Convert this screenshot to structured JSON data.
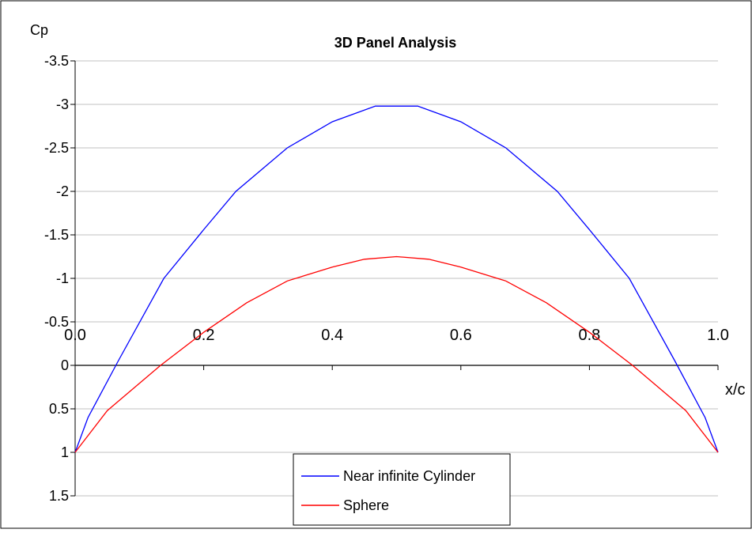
{
  "chart_data": {
    "type": "line",
    "title": "3D Panel Analysis",
    "xlabel": "x/c",
    "ylabel": "Cp",
    "xlim": [
      0,
      1
    ],
    "ylim": [
      1.5,
      -3.5
    ],
    "y_inverted": true,
    "x_ticks": [
      "0.0",
      "0.2",
      "0.4",
      "0.6",
      "0.8",
      "1.0"
    ],
    "x_tick_values": [
      0,
      0.2,
      0.4,
      0.6,
      0.8,
      1.0
    ],
    "y_ticks": [
      "-3.5",
      "-3",
      "-2.5",
      "-2",
      "-1.5",
      "-1",
      "-0.5",
      "0",
      "0.5",
      "1",
      "1.5"
    ],
    "y_tick_values": [
      -3.5,
      -3,
      -2.5,
      -2,
      -1.5,
      -1,
      -0.5,
      0,
      0.5,
      1,
      1.5
    ],
    "grid": "horizontal",
    "legend_position": "bottom-center",
    "series": [
      {
        "name": "Near infinite Cylinder",
        "color": "#0000ff",
        "x": [
          0,
          0.02,
          0.067,
          0.138,
          0.2,
          0.25,
          0.33,
          0.4,
          0.467,
          0.533,
          0.6,
          0.67,
          0.75,
          0.8,
          0.862,
          0.933,
          0.98,
          1.0
        ],
        "y": [
          1,
          0.6,
          -0.05,
          -1.0,
          -1.56,
          -2.0,
          -2.5,
          -2.8,
          -2.98,
          -2.98,
          -2.8,
          -2.5,
          -2.0,
          -1.56,
          -1.0,
          -0.05,
          0.6,
          1
        ]
      },
      {
        "name": "Sphere",
        "color": "#ff0000",
        "x": [
          0,
          0.05,
          0.133,
          0.2,
          0.267,
          0.33,
          0.4,
          0.45,
          0.5,
          0.55,
          0.6,
          0.67,
          0.733,
          0.8,
          0.867,
          0.95,
          1.0
        ],
        "y": [
          1,
          0.52,
          0.0,
          -0.38,
          -0.72,
          -0.97,
          -1.13,
          -1.22,
          -1.25,
          -1.22,
          -1.13,
          -0.97,
          -0.72,
          -0.38,
          0.0,
          0.52,
          1
        ]
      }
    ]
  }
}
